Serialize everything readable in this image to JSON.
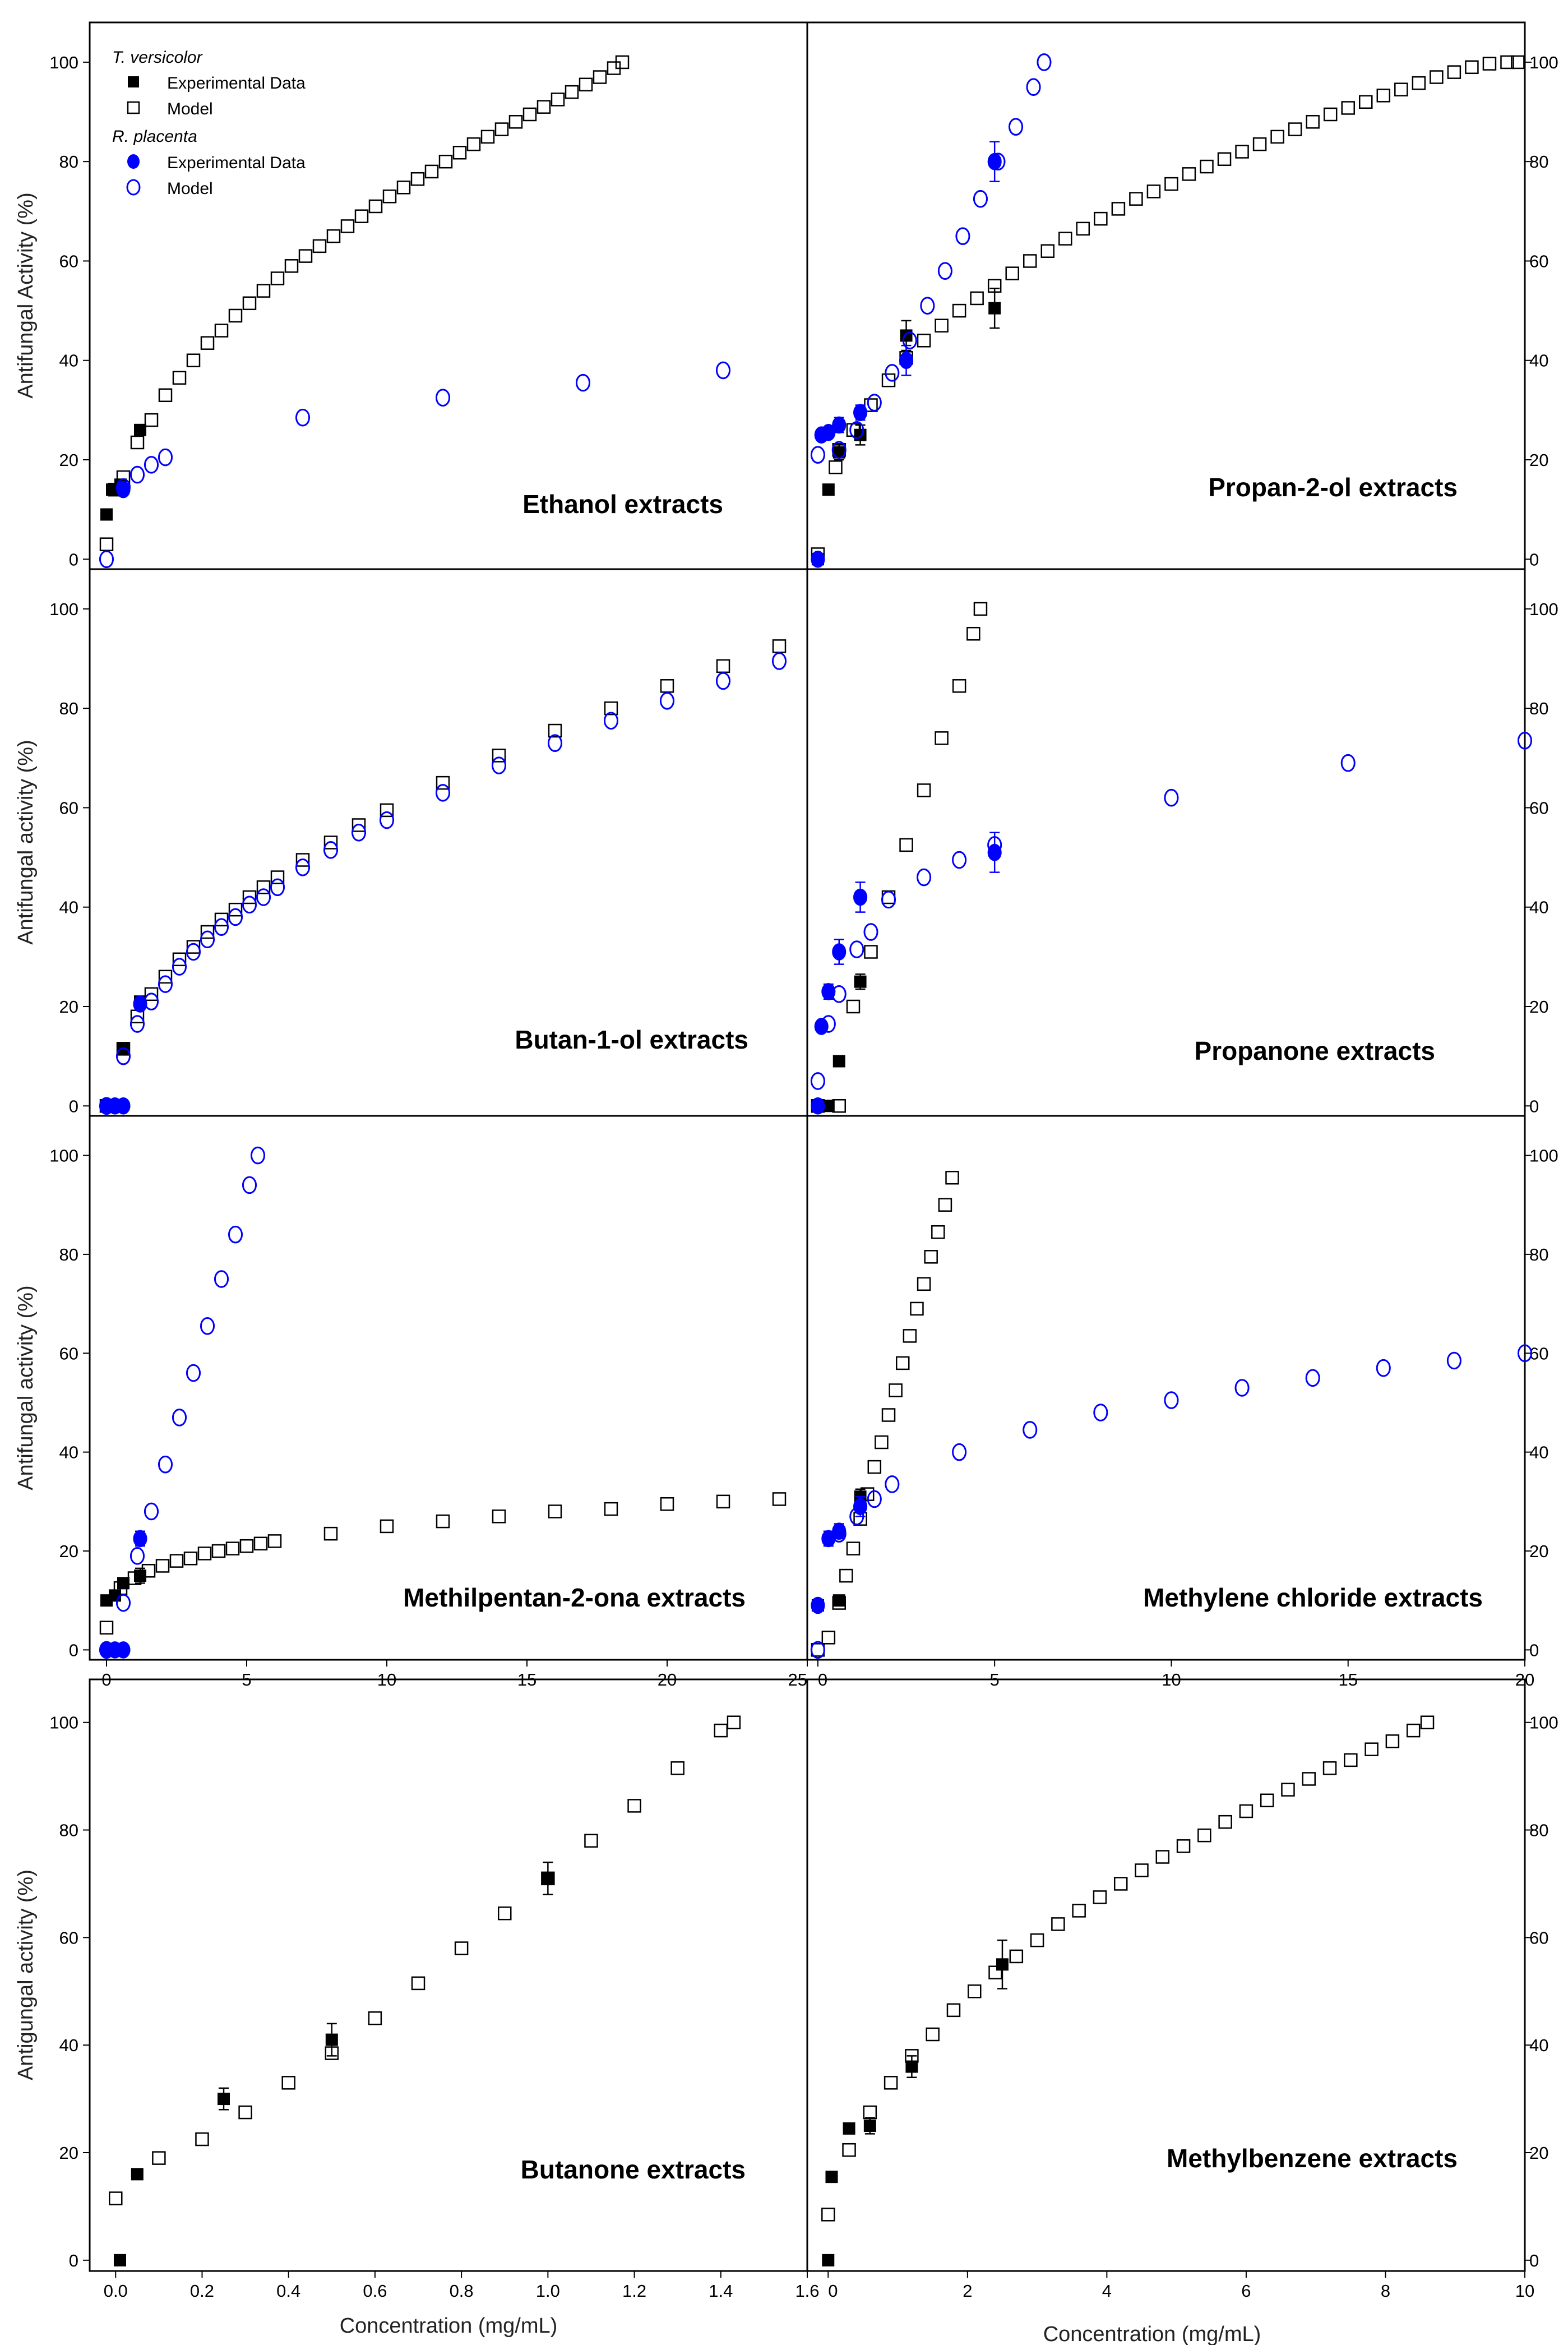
{
  "legend": {
    "group1": "T. versicolor",
    "group1_exp": "Experimental Data",
    "group1_model": "Model",
    "group2": "R. placenta",
    "group2_exp": "Experimental Data",
    "group2_model": "Model"
  },
  "axis_labels": {
    "y_row1": "Antifungal Activity (%)",
    "y_row2": "Antifungal activity (%)",
    "y_row3": "Antifungal activity (%)",
    "y_row4": "Antigungal activity (%)",
    "x_left": "Concentration (mg/mL)",
    "x_right": "Concentration (mg/mL)"
  },
  "colors": {
    "t_versicolor": "#000000",
    "r_placenta": "#0000ff"
  },
  "chart_data": [
    {
      "type": "scatter",
      "title": "Ethanol extracts",
      "xlim": [
        -0.6,
        25
      ],
      "ylim": [
        -2,
        108
      ],
      "series": [
        {
          "name": "T. versicolor Experimental Data",
          "x": [
            0,
            0.2,
            0.5,
            1.2
          ],
          "y": [
            9,
            14,
            15,
            26
          ]
        },
        {
          "name": "T. versicolor Model",
          "x": [
            0,
            0.3,
            0.6,
            1.1,
            1.6,
            2.1,
            2.6,
            3.1,
            3.6,
            4.1,
            4.6,
            5.1,
            5.6,
            6.1,
            6.6,
            7.1,
            7.6,
            8.1,
            8.6,
            9.1,
            9.6,
            10.1,
            10.6,
            11.1,
            11.6,
            12.1,
            12.6,
            13.1,
            13.6,
            14.1,
            14.6,
            15.1,
            15.6,
            16.1,
            16.6,
            17.1,
            17.6,
            18.1,
            18.4
          ],
          "y": [
            3,
            14,
            16.5,
            23.5,
            28,
            33,
            36.5,
            40,
            43.5,
            46,
            49,
            51.5,
            54,
            56.5,
            59,
            61,
            63,
            65,
            67,
            69,
            71,
            73,
            74.8,
            76.5,
            78,
            80,
            81.8,
            83.5,
            85,
            86.5,
            88,
            89.5,
            91,
            92.5,
            94,
            95.5,
            97,
            98.8,
            100
          ]
        },
        {
          "name": "R. placenta Experimental Data",
          "x": [
            0.6
          ],
          "y": [
            14
          ]
        },
        {
          "name": "R. placenta Model",
          "x": [
            0,
            0.6,
            1.1,
            1.6,
            2.1,
            7,
            12,
            17,
            22
          ],
          "y": [
            0,
            14.5,
            17,
            19,
            20.5,
            28.5,
            32.5,
            35.5,
            38
          ]
        }
      ]
    },
    {
      "type": "scatter",
      "title": "Propan-2-ol extracts",
      "xlim": [
        -0.3,
        20
      ],
      "ylim": [
        -2,
        108
      ],
      "series": [
        {
          "name": "T. versicolor Experimental Data",
          "x": [
            0,
            0.3,
            0.6,
            1.2,
            2.5,
            5
          ],
          "y": [
            0,
            14,
            21.5,
            25,
            45,
            50.5
          ],
          "err": [
            0,
            0,
            1.5,
            2,
            3,
            4
          ]
        },
        {
          "name": "T. versicolor Model",
          "x": [
            0,
            0.5,
            0.6,
            1,
            1.5,
            2,
            2.5,
            3,
            3.5,
            4,
            4.5,
            5,
            5.5,
            6,
            6.5,
            7,
            7.5,
            8,
            8.5,
            9,
            9.5,
            10,
            10.5,
            11,
            11.5,
            12,
            12.5,
            13,
            13.5,
            14,
            14.5,
            15,
            15.5,
            16,
            16.5,
            17,
            17.5,
            18,
            18.5,
            19,
            19.5,
            19.8
          ],
          "y": [
            1,
            18.5,
            22,
            26,
            31,
            36,
            40.5,
            44,
            47,
            50,
            52.5,
            55,
            57.5,
            60,
            62,
            64.5,
            66.5,
            68.5,
            70.5,
            72.5,
            74,
            75.5,
            77.5,
            79,
            80.5,
            82,
            83.5,
            85,
            86.5,
            88,
            89.5,
            90.8,
            92,
            93.3,
            94.5,
            95.8,
            97,
            98,
            99,
            99.7,
            100,
            100
          ]
        },
        {
          "name": "R. placenta Experimental Data",
          "x": [
            0,
            0.1,
            0.3,
            0.6,
            1.2,
            2.5,
            5
          ],
          "y": [
            0,
            25,
            25.5,
            27,
            29.5,
            40,
            80
          ],
          "err": [
            0,
            0,
            0,
            1.5,
            1.5,
            3,
            4
          ]
        },
        {
          "name": "R. placenta Model",
          "x": [
            0,
            0.6,
            1.1,
            1.6,
            2.1,
            2.6,
            3.1,
            3.6,
            4.1,
            4.6,
            5.1,
            5.6,
            6.1,
            6.4
          ],
          "y": [
            21,
            22,
            26,
            31.5,
            37.5,
            44,
            51,
            58,
            65,
            72.5,
            80,
            87,
            95,
            100
          ]
        }
      ]
    },
    {
      "type": "scatter",
      "title": "Butan-1-ol  extracts",
      "xlim": [
        -0.6,
        25
      ],
      "ylim": [
        -2,
        108
      ],
      "series": [
        {
          "name": "T. versicolor Experimental Data",
          "x": [
            0,
            0.6,
            1.2
          ],
          "y": [
            0,
            11.5,
            21
          ]
        },
        {
          "name": "T. versicolor Model",
          "x": [
            0,
            0.6,
            1.1,
            1.6,
            2.1,
            2.6,
            3.1,
            3.6,
            4.1,
            4.6,
            5.1,
            5.6,
            6.1,
            7,
            8,
            9,
            10,
            12,
            14,
            16,
            18,
            20,
            22,
            24
          ],
          "y": [
            0,
            11.5,
            18,
            22.5,
            26,
            29.5,
            32,
            35,
            37.5,
            39.5,
            42,
            44,
            46,
            49.5,
            53,
            56.5,
            59.5,
            65,
            70.5,
            75.5,
            80,
            84.5,
            88.5,
            92.5
          ]
        },
        {
          "name": "R. placenta Experimental Data",
          "x": [
            0,
            0.3,
            0.6,
            1.2
          ],
          "y": [
            0,
            0,
            0,
            20.5
          ]
        },
        {
          "name": "R. placenta Model",
          "x": [
            0,
            0.6,
            1.1,
            1.6,
            2.1,
            2.6,
            3.1,
            3.6,
            4.1,
            4.6,
            5.1,
            5.6,
            6.1,
            7,
            8,
            9,
            10,
            12,
            14,
            16,
            18,
            20,
            22,
            24
          ],
          "y": [
            0,
            10,
            16.5,
            21,
            24.5,
            28,
            31,
            33.5,
            36,
            38,
            40.5,
            42,
            44,
            48,
            51.5,
            55,
            57.5,
            63,
            68.5,
            73,
            77.5,
            81.5,
            85.5,
            89.5
          ]
        }
      ]
    },
    {
      "type": "scatter",
      "title": "Propanone extracts",
      "xlim": [
        -0.3,
        20
      ],
      "ylim": [
        -2,
        108
      ],
      "series": [
        {
          "name": "T. versicolor Experimental Data",
          "x": [
            0,
            0.3,
            0.6,
            1.2
          ],
          "y": [
            0,
            0,
            9,
            25
          ],
          "err": [
            0,
            0,
            0,
            1.5
          ]
        },
        {
          "name": "T. versicolor Model",
          "x": [
            0,
            0.6,
            1,
            1.5,
            2,
            2.5,
            3,
            3.5,
            4,
            4.4,
            4.6
          ],
          "y": [
            0,
            0,
            20,
            31,
            42,
            52.5,
            63.5,
            74,
            84.5,
            95,
            100
          ]
        },
        {
          "name": "R. placenta Experimental Data",
          "x": [
            0,
            0.1,
            0.3,
            0.6,
            1.2,
            5
          ],
          "y": [
            0,
            16,
            23,
            31,
            42,
            51
          ],
          "err": [
            0,
            0,
            1.5,
            2.5,
            3,
            4
          ]
        },
        {
          "name": "R. placenta Model",
          "x": [
            0,
            0.3,
            0.6,
            1.1,
            1.5,
            2,
            3,
            4,
            5,
            10,
            15,
            20
          ],
          "y": [
            5,
            16.5,
            22.5,
            31.5,
            35,
            41.5,
            46,
            49.5,
            52.5,
            62,
            69,
            73.5
          ]
        }
      ]
    },
    {
      "type": "scatter",
      "title": "Methilpentan-2-ona extracts",
      "xlim": [
        -0.6,
        25
      ],
      "ylim": [
        -2,
        108
      ],
      "xticks": [
        "0",
        "5",
        "10",
        "15",
        "20",
        "25"
      ],
      "series": [
        {
          "name": "T. versicolor Experimental Data",
          "x": [
            0,
            0.3,
            0.6,
            1.2
          ],
          "y": [
            10,
            11,
            13.5,
            15
          ],
          "err": [
            0,
            0,
            0,
            1.5
          ]
        },
        {
          "name": "T. versicolor Model",
          "x": [
            0,
            0.5,
            1,
            1.5,
            2,
            2.5,
            3,
            3.5,
            4,
            4.5,
            5,
            5.5,
            6,
            8,
            10,
            12,
            14,
            16,
            18,
            20,
            22,
            24
          ],
          "y": [
            4.5,
            12.5,
            14.5,
            16,
            17,
            18,
            18.5,
            19.5,
            20,
            20.5,
            21,
            21.5,
            22,
            23.5,
            25,
            26,
            27,
            28,
            28.5,
            29.5,
            30,
            30.5
          ]
        },
        {
          "name": "R. placenta Experimental Data",
          "x": [
            0,
            0.3,
            0.6,
            1.2
          ],
          "y": [
            0,
            0,
            0,
            22.5
          ],
          "err": [
            0,
            0,
            0,
            1.5
          ]
        },
        {
          "name": "R. placenta Model",
          "x": [
            0,
            0.6,
            1.1,
            1.6,
            2.1,
            2.6,
            3.1,
            3.6,
            4.1,
            4.6,
            5.1,
            5.4
          ],
          "y": [
            0,
            9.5,
            19,
            28,
            37.5,
            47,
            56,
            65.5,
            75,
            84,
            94,
            100
          ]
        }
      ]
    },
    {
      "type": "scatter",
      "title": "Methylene chloride extracts",
      "xlim": [
        -0.3,
        20
      ],
      "ylim": [
        -2,
        108
      ],
      "xticks": [
        "0",
        "5",
        "10",
        "15",
        "20"
      ],
      "series": [
        {
          "name": "T. versicolor Experimental Data",
          "x": [
            0,
            0.6,
            1.2
          ],
          "y": [
            9,
            10,
            31
          ],
          "err": [
            0,
            0,
            1.5
          ]
        },
        {
          "name": "T. versicolor Model",
          "x": [
            0,
            0.3,
            0.6,
            0.8,
            1,
            1.2,
            1.4,
            1.6,
            1.8,
            2,
            2.2,
            2.4,
            2.6,
            2.8,
            3,
            3.2,
            3.4,
            3.6,
            3.8
          ],
          "y": [
            0,
            2.5,
            9.5,
            15,
            20.5,
            26.5,
            31.5,
            37,
            42,
            47.5,
            52.5,
            58,
            63.5,
            69,
            74,
            79.5,
            84.5,
            90,
            95.5
          ]
        },
        {
          "name": "R. placenta Experimental Data",
          "x": [
            0,
            0.3,
            0.6,
            1.2
          ],
          "y": [
            9,
            22.5,
            24,
            29
          ],
          "err": [
            0,
            1.5,
            1.5,
            2
          ]
        },
        {
          "name": "R. placenta Model",
          "x": [
            0,
            0.6,
            1.1,
            1.6,
            2.1,
            4,
            6,
            8,
            10,
            12,
            14,
            16,
            18,
            20
          ],
          "y": [
            0,
            23.5,
            27,
            30.5,
            33.5,
            40,
            44.5,
            48,
            50.5,
            53,
            55,
            57,
            58.5,
            60
          ]
        }
      ]
    },
    {
      "type": "scatter",
      "title": "Butanone extracts",
      "xlim": [
        -0.06,
        1.6
      ],
      "ylim": [
        -2,
        108
      ],
      "xticks": [
        "0.0",
        "0.2",
        "0.4",
        "0.6",
        "0.8",
        "1.0",
        "1.2",
        "1.4",
        "1.6"
      ],
      "series": [
        {
          "name": "T. versicolor Experimental Data",
          "x": [
            0.01,
            0.05,
            0.25,
            0.5,
            1
          ],
          "y": [
            0,
            16,
            30,
            41,
            71
          ],
          "err": [
            0,
            0,
            2,
            3,
            3
          ]
        },
        {
          "name": "T. versicolor Model",
          "x": [
            0,
            0.1,
            0.2,
            0.3,
            0.4,
            0.5,
            0.6,
            0.7,
            0.8,
            0.9,
            1,
            1.1,
            1.2,
            1.3,
            1.4,
            1.43
          ],
          "y": [
            11.5,
            19,
            22.5,
            27.5,
            33,
            38.5,
            45,
            51.5,
            58,
            64.5,
            71,
            78,
            84.5,
            91.5,
            98.5,
            100
          ]
        }
      ]
    },
    {
      "type": "scatter",
      "title": "Methylbenzene  extracts",
      "xlim": [
        -0.3,
        10
      ],
      "ylim": [
        -2,
        108
      ],
      "xticks": [
        "0",
        "2",
        "4",
        "6",
        "8",
        "10"
      ],
      "series": [
        {
          "name": "T. versicolor Experimental Data",
          "x": [
            0,
            0.05,
            0.3,
            0.6,
            1.2,
            2.5
          ],
          "y": [
            0,
            15.5,
            24.5,
            25,
            36,
            55
          ],
          "err": [
            0,
            0,
            0,
            1.5,
            2,
            4.5
          ]
        },
        {
          "name": "T. versicolor Model",
          "x": [
            0,
            0.3,
            0.6,
            0.9,
            1.2,
            1.5,
            1.8,
            2.1,
            2.4,
            2.7,
            3,
            3.3,
            3.6,
            3.9,
            4.2,
            4.5,
            4.8,
            5.1,
            5.4,
            5.7,
            6,
            6.3,
            6.6,
            6.9,
            7.2,
            7.5,
            7.8,
            8.1,
            8.4,
            8.6
          ],
          "y": [
            8.5,
            20.5,
            27.5,
            33,
            38,
            42,
            46.5,
            50,
            53.5,
            56.5,
            59.5,
            62.5,
            65,
            67.5,
            70,
            72.5,
            75,
            77,
            79,
            81.5,
            83.5,
            85.5,
            87.5,
            89.5,
            91.5,
            93,
            95,
            96.5,
            98.5,
            100
          ]
        }
      ]
    }
  ]
}
